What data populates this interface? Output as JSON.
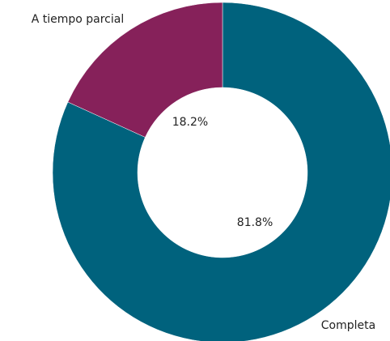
{
  "chart_data": {
    "type": "donut",
    "categories": [
      "Completa",
      "A tiempo parcial"
    ],
    "values": [
      81.8,
      18.2
    ],
    "value_labels": [
      "81.8%",
      "18.2%"
    ],
    "colors": [
      "#00627d",
      "#86215a"
    ]
  }
}
